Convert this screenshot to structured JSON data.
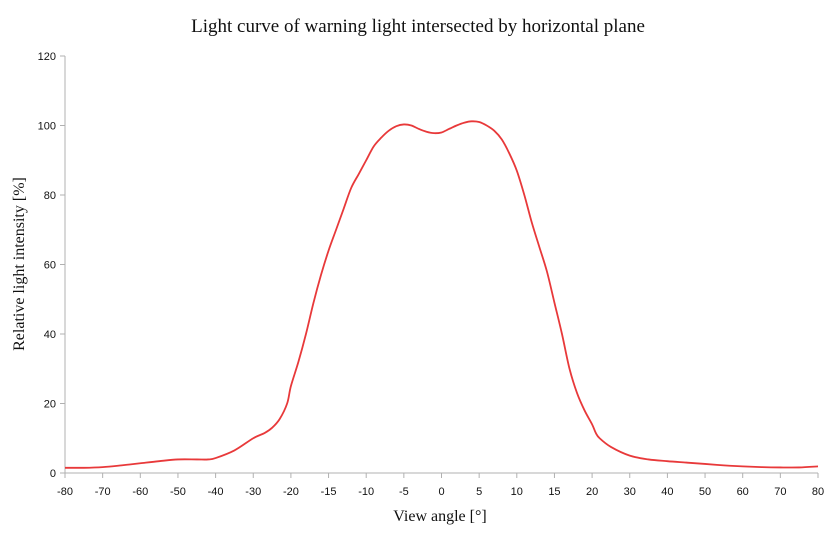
{
  "chart_data": {
    "type": "line",
    "title": "Light curve of warning light intersected by horizontal plane",
    "xlabel": "View angle [°]",
    "ylabel": "Relative light intensity [%]",
    "x_ticks": [
      "-80",
      "-70",
      "-60",
      "-50",
      "-40",
      "-30",
      "-20",
      "-15",
      "-10",
      "-5",
      "0",
      "5",
      "10",
      "15",
      "20",
      "30",
      "40",
      "50",
      "60",
      "70",
      "80"
    ],
    "y_ticks": [
      "0",
      "20",
      "40",
      "60",
      "80",
      "100",
      "120"
    ],
    "ylim": [
      0,
      120
    ],
    "grid": false,
    "legend": "none",
    "series": [
      {
        "color": "#e8393a",
        "x": [
          -80,
          -75,
          -70,
          -65,
          -60,
          -55,
          -50,
          -45,
          -42,
          -40,
          -35,
          -30,
          -27,
          -25,
          -23,
          -21,
          -20,
          -19,
          -18,
          -17,
          -16,
          -15,
          -14,
          -13,
          -12,
          -11,
          -10,
          -9,
          -8,
          -7,
          -6,
          -5,
          -4,
          -3,
          -2,
          -1,
          0,
          1,
          2,
          3,
          4,
          5,
          6,
          7,
          8,
          9,
          10,
          11,
          12,
          13,
          14,
          15,
          16,
          17,
          18,
          19,
          20,
          21,
          22,
          25,
          30,
          35,
          40,
          45,
          50,
          55,
          60,
          65,
          70,
          75,
          80
        ],
        "values": [
          1.5,
          1.5,
          1.7,
          2.2,
          2.8,
          3.4,
          3.9,
          3.9,
          3.9,
          4.3,
          6.5,
          10,
          11.5,
          13,
          15.5,
          20,
          25,
          32,
          40,
          49,
          57,
          64,
          70,
          76,
          82,
          86,
          90,
          94,
          96.5,
          98.5,
          99.8,
          100.3,
          100,
          99,
          98.2,
          97.8,
          98,
          99,
          100,
          100.8,
          101.2,
          101,
          100,
          98.5,
          96,
          92,
          87,
          80,
          72,
          65,
          58,
          49,
          40,
          30,
          23,
          18,
          14,
          11.5,
          10,
          7.5,
          5,
          3.9,
          3.4,
          3,
          2.6,
          2.2,
          1.9,
          1.7,
          1.6,
          1.6,
          1.9
        ]
      }
    ]
  }
}
